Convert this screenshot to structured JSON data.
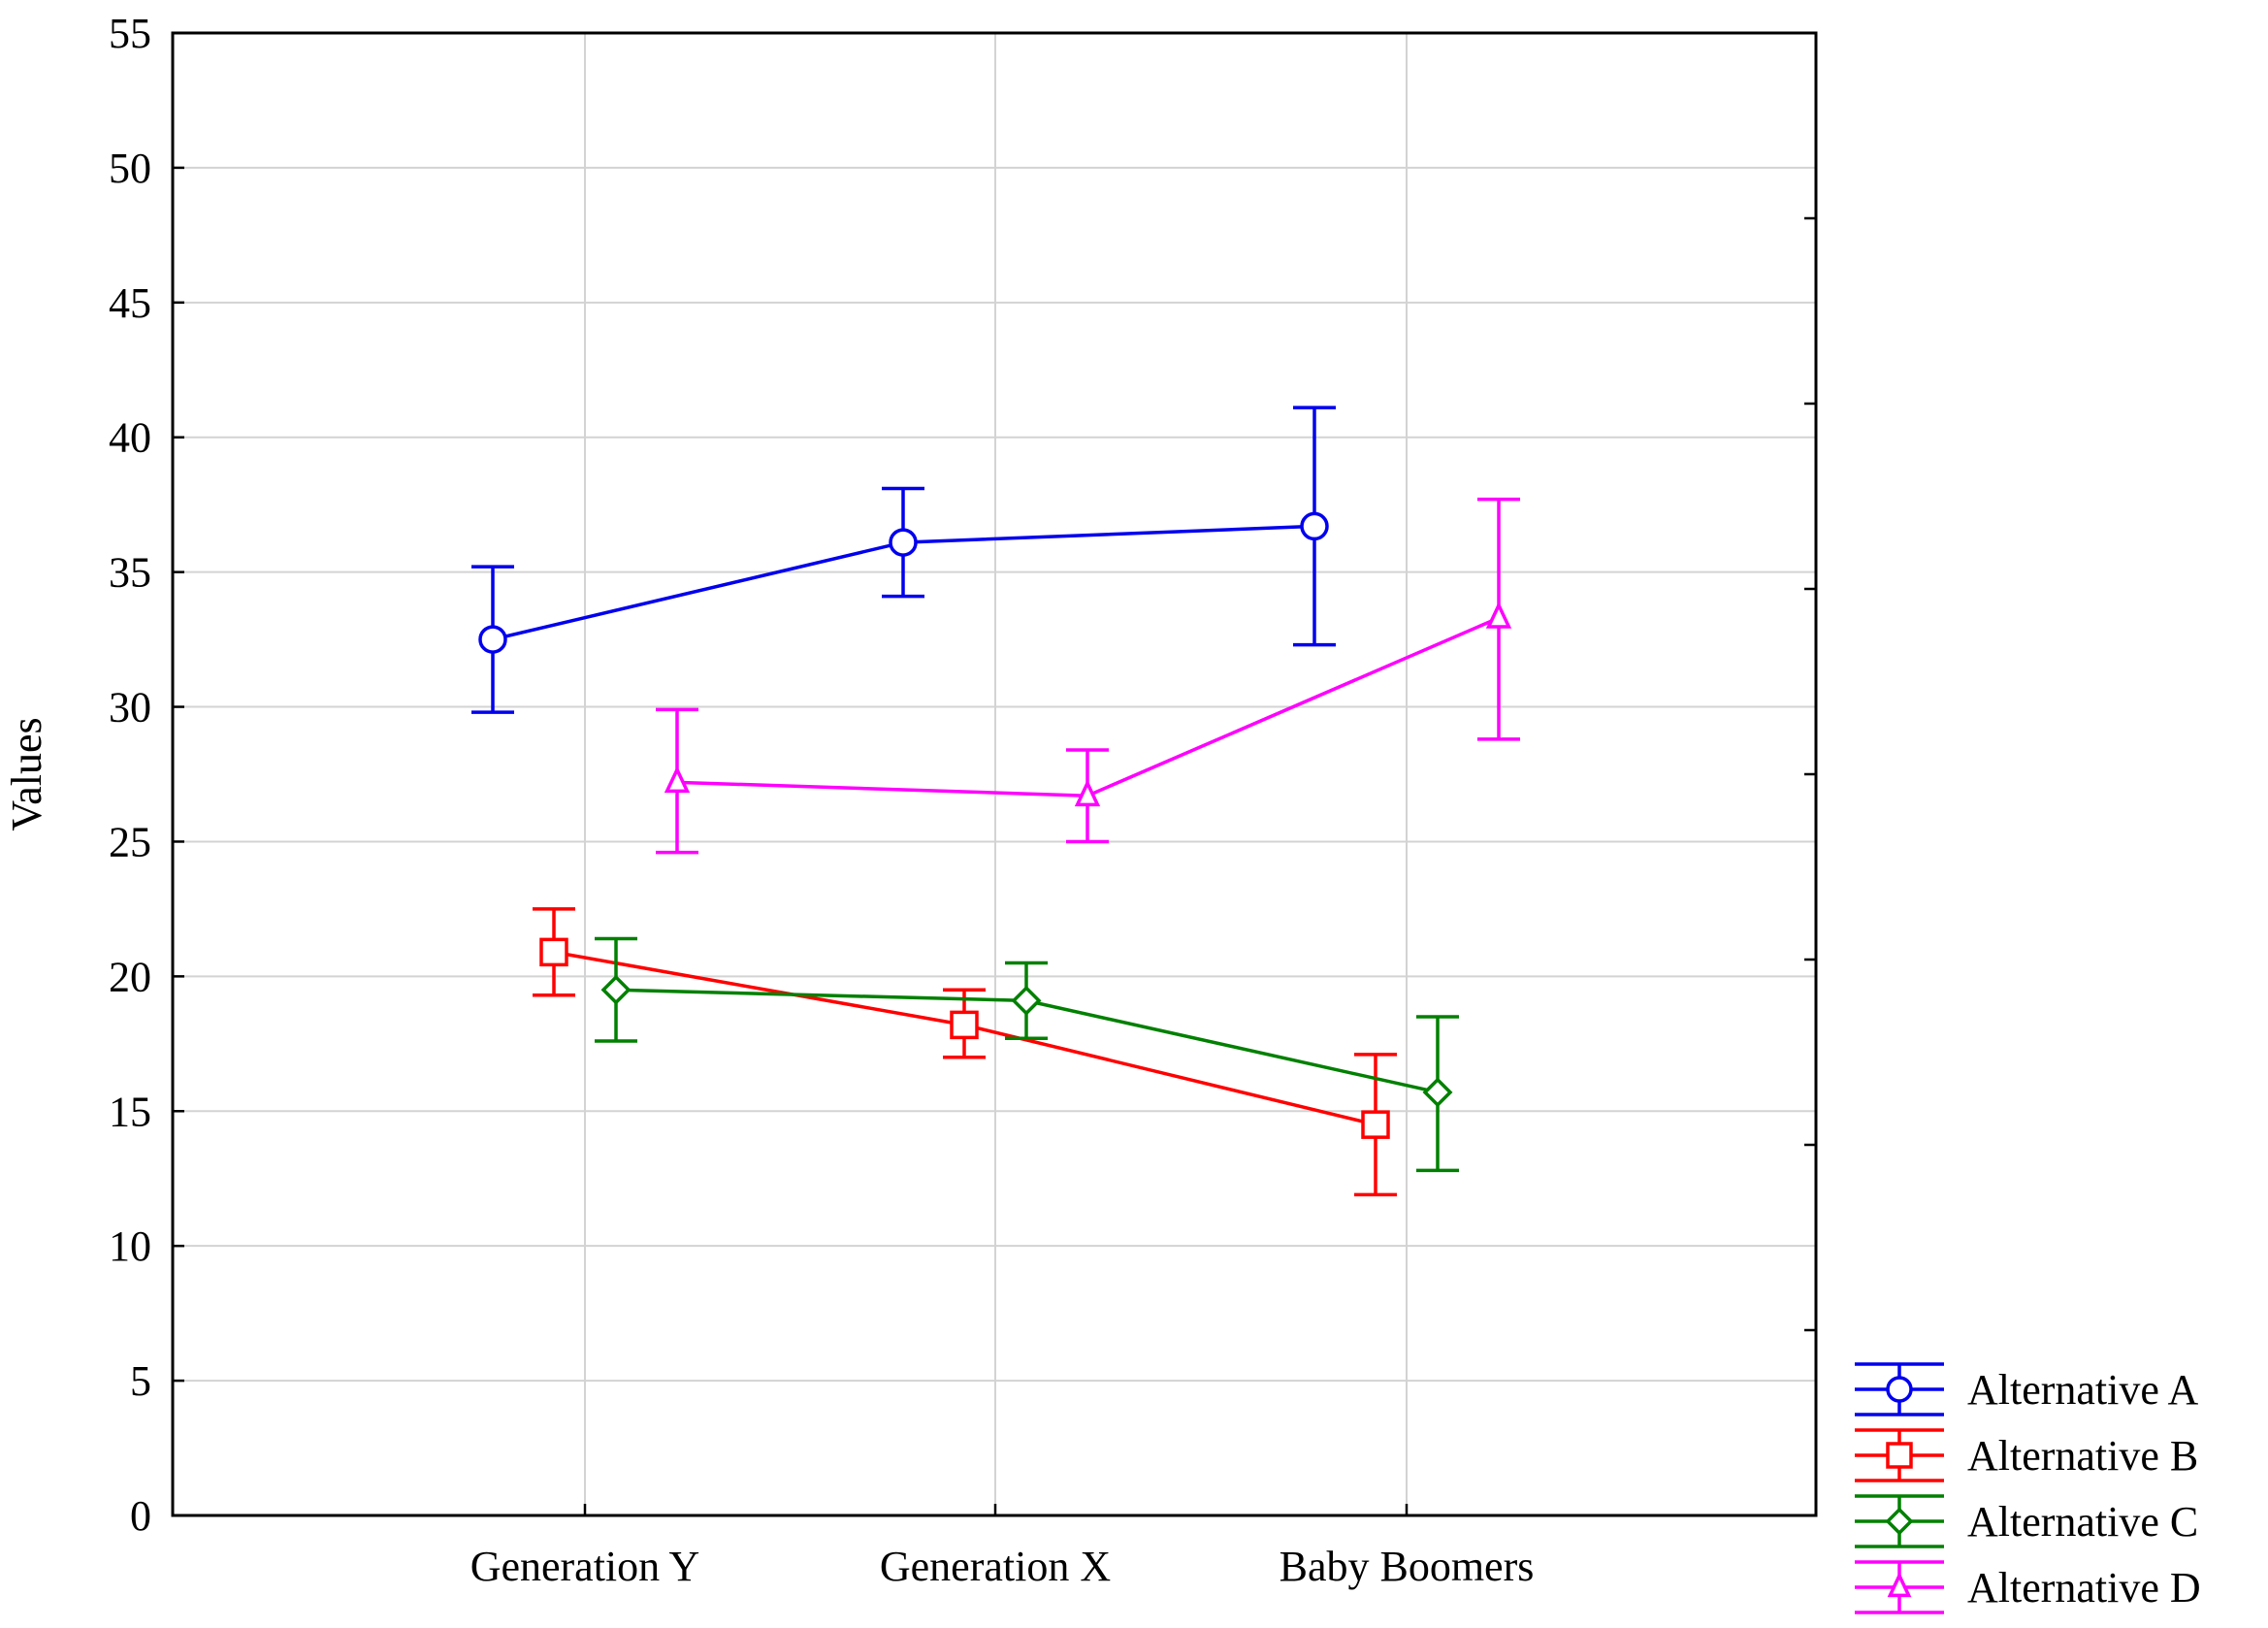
{
  "chart_data": {
    "type": "line",
    "title": "",
    "xlabel": "",
    "ylabel": "Values",
    "ylim": [
      0,
      55
    ],
    "yticks": [
      0,
      5,
      10,
      15,
      20,
      25,
      30,
      35,
      40,
      45,
      50,
      55
    ],
    "grid": true,
    "legend_position": "bottom-right, outside plot",
    "categories": [
      "Generation Y",
      "Generation X",
      "Baby Boomers"
    ],
    "series": [
      {
        "name": "Alternative A",
        "color": "#0000ee",
        "marker": "circle",
        "values": [
          32.5,
          36.1,
          36.7
        ],
        "err_low": [
          29.8,
          34.1,
          32.3
        ],
        "err_high": [
          35.2,
          38.1,
          41.1
        ]
      },
      {
        "name": "Alternative B",
        "color": "#ff0000",
        "marker": "square",
        "values": [
          20.9,
          18.2,
          14.5
        ],
        "err_low": [
          19.3,
          17.0,
          11.9
        ],
        "err_high": [
          22.5,
          19.5,
          17.1
        ]
      },
      {
        "name": "Alternative C",
        "color": "#008000",
        "marker": "diamond",
        "values": [
          19.5,
          19.1,
          15.7
        ],
        "err_low": [
          17.6,
          17.7,
          12.8
        ],
        "err_high": [
          21.4,
          20.5,
          18.5
        ]
      },
      {
        "name": "Alternative D",
        "color": "#ff00ff",
        "marker": "triangle",
        "values": [
          27.2,
          26.7,
          33.3
        ],
        "err_low": [
          24.6,
          25.0,
          28.8
        ],
        "err_high": [
          29.9,
          28.4,
          37.7
        ]
      }
    ]
  }
}
